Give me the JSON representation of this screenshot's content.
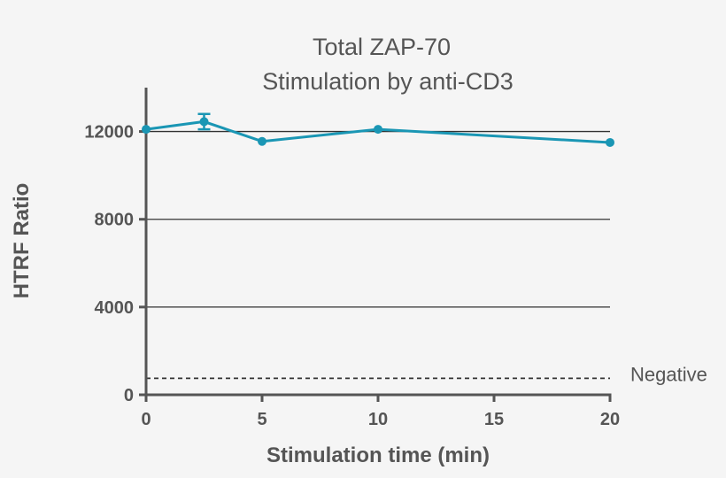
{
  "chart_data": {
    "type": "line",
    "title": "Total ZAP-70",
    "subtitle": "Stimulation by anti-CD3",
    "xlabel": "Stimulation time (min)",
    "ylabel": "HTRF Ratio",
    "xlim": [
      0,
      20
    ],
    "ylim": [
      0,
      14000
    ],
    "xticks": [
      0,
      5,
      10,
      15,
      20
    ],
    "xtick_labels": [
      "0",
      "5",
      "10",
      "15",
      "20"
    ],
    "yticks": [
      0,
      4000,
      8000,
      12000
    ],
    "ytick_labels": [
      "0",
      "4000",
      "8000",
      "12000"
    ],
    "gridlines_y": [
      4000,
      8000,
      12000
    ],
    "series": [
      {
        "name": "Total ZAP-70",
        "color": "#1a96b4",
        "x": [
          0,
          2.5,
          5,
          10,
          20
        ],
        "y": [
          12100,
          12450,
          11550,
          12100,
          11500
        ],
        "error": [
          0,
          350,
          0,
          0,
          0
        ]
      }
    ],
    "reference_line": {
      "label": "Negative",
      "value": 750,
      "style": "dashed"
    }
  }
}
